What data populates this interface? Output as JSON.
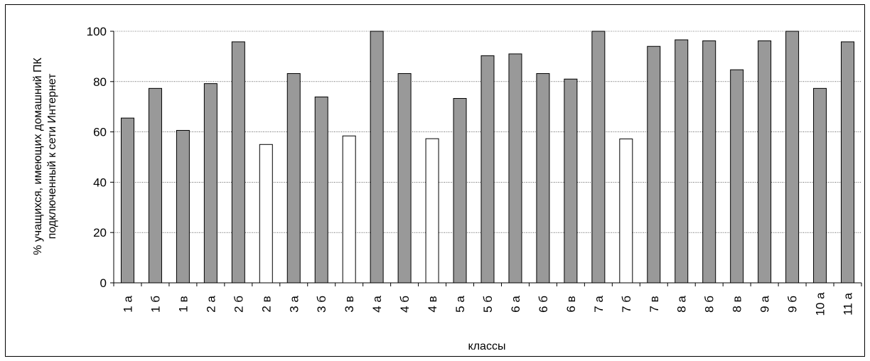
{
  "chart_data": {
    "type": "bar",
    "title": "",
    "xlabel": "классы",
    "ylabel_lines": [
      "% учащихся, имеющих домашний ПК",
      "подключенный к сети Интернет"
    ],
    "ylim": [
      0,
      100
    ],
    "yticks": [
      0,
      20,
      40,
      60,
      80,
      100
    ],
    "grid": true,
    "legend": "none",
    "colors": {
      "bar_default": "#999999",
      "bar_highlight": "#ffffff",
      "stroke": "#000000",
      "grid": "#000000"
    },
    "categories": [
      "1 а",
      "1 б",
      "1 в",
      "2 а",
      "2 б",
      "2 в",
      "3 а",
      "3 б",
      "3 в",
      "4 а",
      "4 б",
      "4 в",
      "5 а",
      "5 б",
      "6 а",
      "6 б",
      "6 в",
      "7 а",
      "7 б",
      "7 в",
      "8 а",
      "8 б",
      "8 в",
      "9 а",
      "9 б",
      "10 а",
      "11 а"
    ],
    "values": [
      65.5,
      77.3,
      60.6,
      79.2,
      95.8,
      55.0,
      83.2,
      73.9,
      58.4,
      100,
      83.2,
      57.3,
      73.3,
      90.3,
      91.0,
      83.2,
      81.0,
      100,
      57.2,
      94.0,
      96.6,
      96.2,
      84.7,
      96.2,
      100,
      77.3,
      95.8
    ],
    "highlight": [
      false,
      false,
      false,
      false,
      false,
      true,
      false,
      false,
      true,
      false,
      false,
      true,
      false,
      false,
      false,
      false,
      false,
      false,
      true,
      false,
      false,
      false,
      false,
      false,
      false,
      false,
      false
    ]
  }
}
